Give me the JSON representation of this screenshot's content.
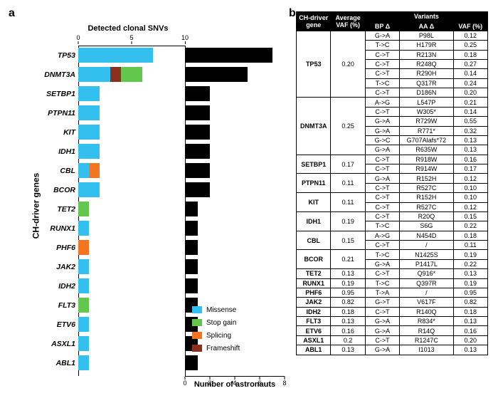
{
  "panels": {
    "a": "a",
    "b": "b"
  },
  "chart": {
    "title_top": "Detected clonal SNVs",
    "title_bot": "Number of astronauts",
    "y_title": "CH-driver genes",
    "top_axis": {
      "max": 10,
      "ticks": [
        0,
        5,
        10
      ]
    },
    "bot_axis": {
      "max": 8,
      "ticks": [
        0,
        2,
        4,
        6,
        8
      ]
    },
    "legend": {
      "missense": {
        "label": "Missense",
        "color": "#34c0ef"
      },
      "stopgain": {
        "label": "Stop gain",
        "color": "#63c74d"
      },
      "splicing": {
        "label": "Splicing",
        "color": "#f37421"
      },
      "frameshift": {
        "label": "Frameshift",
        "color": "#8c2f1f"
      }
    },
    "right_bar_color": "#000000",
    "genes": [
      {
        "name": "TP53",
        "missense": 7,
        "stopgain": 0,
        "splicing": 0,
        "frameshift": 0,
        "astronauts": 7
      },
      {
        "name": "DNMT3A",
        "missense": 3,
        "stopgain": 2,
        "splicing": 0,
        "frameshift": 1,
        "astronauts": 5
      },
      {
        "name": "SETBP1",
        "missense": 2,
        "stopgain": 0,
        "splicing": 0,
        "frameshift": 0,
        "astronauts": 2
      },
      {
        "name": "PTPN11",
        "missense": 2,
        "stopgain": 0,
        "splicing": 0,
        "frameshift": 0,
        "astronauts": 2
      },
      {
        "name": "KIT",
        "missense": 2,
        "stopgain": 0,
        "splicing": 0,
        "frameshift": 0,
        "astronauts": 2
      },
      {
        "name": "IDH1",
        "missense": 2,
        "stopgain": 0,
        "splicing": 0,
        "frameshift": 0,
        "astronauts": 2
      },
      {
        "name": "CBL",
        "missense": 1,
        "stopgain": 0,
        "splicing": 1,
        "frameshift": 0,
        "astronauts": 2
      },
      {
        "name": "BCOR",
        "missense": 2,
        "stopgain": 0,
        "splicing": 0,
        "frameshift": 0,
        "astronauts": 2
      },
      {
        "name": "TET2",
        "missense": 0,
        "stopgain": 1,
        "splicing": 0,
        "frameshift": 0,
        "astronauts": 1
      },
      {
        "name": "RUNX1",
        "missense": 1,
        "stopgain": 0,
        "splicing": 0,
        "frameshift": 0,
        "astronauts": 1
      },
      {
        "name": "PHF6",
        "missense": 0,
        "stopgain": 0,
        "splicing": 1,
        "frameshift": 0,
        "astronauts": 1
      },
      {
        "name": "JAK2",
        "missense": 1,
        "stopgain": 0,
        "splicing": 0,
        "frameshift": 0,
        "astronauts": 1
      },
      {
        "name": "IDH2",
        "missense": 1,
        "stopgain": 0,
        "splicing": 0,
        "frameshift": 0,
        "astronauts": 1
      },
      {
        "name": "FLT3",
        "missense": 0,
        "stopgain": 1,
        "splicing": 0,
        "frameshift": 0,
        "astronauts": 1
      },
      {
        "name": "ETV6",
        "missense": 1,
        "stopgain": 0,
        "splicing": 0,
        "frameshift": 0,
        "astronauts": 1
      },
      {
        "name": "ASXL1",
        "missense": 1,
        "stopgain": 0,
        "splicing": 0,
        "frameshift": 0,
        "astronauts": 1
      },
      {
        "name": "ABL1",
        "missense": 1,
        "stopgain": 0,
        "splicing": 0,
        "frameshift": 0,
        "astronauts": 1
      }
    ]
  },
  "table": {
    "headers": {
      "gene": "CH-driver\ngene",
      "avg": "Average\nVAF (%)",
      "variants": "Variants",
      "bp": "BP Δ",
      "aa": "AA Δ",
      "vaf": "VAF (%)"
    },
    "col_widths": [
      "18%",
      "18%",
      "18%",
      "28%",
      "18%"
    ],
    "groups": [
      {
        "gene": "TP53",
        "avg": "0.20",
        "variants": [
          [
            "G->A",
            "P98L",
            "0.12"
          ],
          [
            "T->C",
            "H179R",
            "0.25"
          ],
          [
            "C->T",
            "R213N",
            "0.18"
          ],
          [
            "C->T",
            "R248Q",
            "0.27"
          ],
          [
            "C->T",
            "R290H",
            "0.14"
          ],
          [
            "T->C",
            "Q317R",
            "0.24"
          ],
          [
            "C->T",
            "D186N",
            "0.20"
          ]
        ]
      },
      {
        "gene": "DNMT3A",
        "avg": "0.25",
        "variants": [
          [
            "A->G",
            "L547P",
            "0.21"
          ],
          [
            "C->T",
            "W305*",
            "0.14"
          ],
          [
            "G->A",
            "R729W",
            "0.55"
          ],
          [
            "G->A",
            "R771*",
            "0.32"
          ],
          [
            "G->C",
            "G707Alafs*72",
            "0.13"
          ],
          [
            "G->A",
            "R635W",
            "0.13"
          ]
        ]
      },
      {
        "gene": "SETBP1",
        "avg": "0.17",
        "variants": [
          [
            "C->T",
            "R918W",
            "0.16"
          ],
          [
            "C->T",
            "R914W",
            "0.17"
          ]
        ]
      },
      {
        "gene": "PTPN11",
        "avg": "0.11",
        "variants": [
          [
            "G->A",
            "R152H",
            "0.12"
          ],
          [
            "C->T",
            "R527C",
            "0.10"
          ]
        ]
      },
      {
        "gene": "KIT",
        "avg": "0.11",
        "variants": [
          [
            "C->T",
            "R152H",
            "0.10"
          ],
          [
            "C->T",
            "R527C",
            "0.12"
          ]
        ]
      },
      {
        "gene": "IDH1",
        "avg": "0.19",
        "variants": [
          [
            "C->T",
            "R20Q",
            "0.15"
          ],
          [
            "T->C",
            "S6G",
            "0.22"
          ]
        ]
      },
      {
        "gene": "CBL",
        "avg": "0.15",
        "variants": [
          [
            "A->G",
            "N454D",
            "0.18"
          ],
          [
            "C->T",
            "/",
            "0.11"
          ]
        ]
      },
      {
        "gene": "BCOR",
        "avg": "0.21",
        "variants": [
          [
            "T->C",
            "N1425S",
            "0.19"
          ],
          [
            "G->A",
            "P1417L",
            "0.22"
          ]
        ]
      },
      {
        "gene": "TET2",
        "avg": "0.13",
        "variants": [
          [
            "C->T",
            "Q916*",
            "0.13"
          ]
        ]
      },
      {
        "gene": "RUNX1",
        "avg": "0.19",
        "variants": [
          [
            "T->C",
            "Q397R",
            "0.19"
          ]
        ]
      },
      {
        "gene": "PHF6",
        "avg": "0.95",
        "variants": [
          [
            "T->A",
            "/",
            "0.95"
          ]
        ]
      },
      {
        "gene": "JAK2",
        "avg": "0.82",
        "variants": [
          [
            "G->T",
            "V617F",
            "0.82"
          ]
        ]
      },
      {
        "gene": "IDH2",
        "avg": "0.18",
        "variants": [
          [
            "C->T",
            "R140Q",
            "0.18"
          ]
        ]
      },
      {
        "gene": "FLT3",
        "avg": "0.13",
        "variants": [
          [
            "G->A",
            "R834*",
            "0.13"
          ]
        ]
      },
      {
        "gene": "ETV6",
        "avg": "0.16",
        "variants": [
          [
            "G->A",
            "R14Q",
            "0.16"
          ]
        ]
      },
      {
        "gene": "ASXL1",
        "avg": "0.2",
        "variants": [
          [
            "C->T",
            "R1247C",
            "0.20"
          ]
        ]
      },
      {
        "gene": "ABL1",
        "avg": "0.13",
        "variants": [
          [
            "G->A",
            "I1013",
            "0.13"
          ]
        ]
      }
    ]
  }
}
